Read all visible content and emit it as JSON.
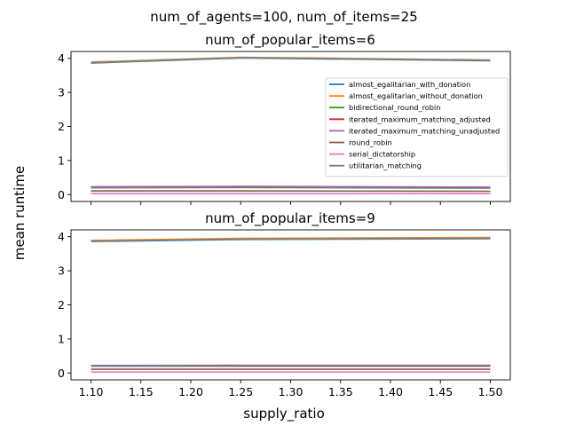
{
  "figure": {
    "suptitle": "num_of_agents=100, num_of_items=25",
    "ylabel": "mean runtime",
    "xlabel": "supply_ratio"
  },
  "chart_data": [
    {
      "type": "line",
      "title": "num_of_popular_items=6",
      "x": [
        1.1,
        1.25,
        1.5
      ],
      "xticks": [
        "1.10",
        "1.15",
        "1.20",
        "1.25",
        "1.30",
        "1.35",
        "1.40",
        "1.45",
        "1.50"
      ],
      "yticks": [
        "0",
        "1",
        "2",
        "3",
        "4"
      ],
      "xlim": [
        1.08,
        1.52
      ],
      "ylim": [
        -0.2,
        4.2
      ],
      "show_x_tick_labels": false,
      "legend_position": "center-right",
      "series": [
        {
          "name": "almost_egalitarian_with_donation",
          "color": "#1f77b4",
          "values": [
            3.86,
            4.01,
            3.93
          ]
        },
        {
          "name": "almost_egalitarian_without_donation",
          "color": "#ff7f0e",
          "values": [
            3.89,
            4.03,
            3.95
          ]
        },
        {
          "name": "bidirectional_round_robin",
          "color": "#2ca02c",
          "values": [
            0.2,
            0.21,
            0.19
          ]
        },
        {
          "name": "iterated_maximum_matching_adjusted",
          "color": "#d62728",
          "values": [
            0.23,
            0.24,
            0.22
          ]
        },
        {
          "name": "iterated_maximum_matching_unadjusted",
          "color": "#9467bd",
          "values": [
            0.22,
            0.23,
            0.21
          ]
        },
        {
          "name": "round_robin",
          "color": "#8c564b",
          "values": [
            0.11,
            0.11,
            0.1
          ]
        },
        {
          "name": "serial_dictatorship",
          "color": "#e377c2",
          "values": [
            0.03,
            0.03,
            0.03
          ]
        },
        {
          "name": "utilitarian_matching",
          "color": "#7f7f7f",
          "values": [
            3.87,
            4.02,
            3.94
          ]
        }
      ]
    },
    {
      "type": "line",
      "title": "num_of_popular_items=9",
      "x": [
        1.1,
        1.25,
        1.5
      ],
      "xticks": [
        "1.10",
        "1.15",
        "1.20",
        "1.25",
        "1.30",
        "1.35",
        "1.40",
        "1.45",
        "1.50"
      ],
      "yticks": [
        "0",
        "1",
        "2",
        "3",
        "4"
      ],
      "xlim": [
        1.08,
        1.52
      ],
      "ylim": [
        -0.2,
        4.2
      ],
      "show_x_tick_labels": true,
      "series": [
        {
          "name": "almost_egalitarian_with_donation",
          "color": "#1f77b4",
          "values": [
            3.86,
            3.92,
            3.94
          ]
        },
        {
          "name": "almost_egalitarian_without_donation",
          "color": "#ff7f0e",
          "values": [
            3.89,
            3.95,
            3.98
          ]
        },
        {
          "name": "bidirectional_round_robin",
          "color": "#2ca02c",
          "values": [
            0.2,
            0.2,
            0.2
          ]
        },
        {
          "name": "iterated_maximum_matching_adjusted",
          "color": "#d62728",
          "values": [
            0.22,
            0.22,
            0.22
          ]
        },
        {
          "name": "iterated_maximum_matching_unadjusted",
          "color": "#9467bd",
          "values": [
            0.22,
            0.23,
            0.23
          ]
        },
        {
          "name": "round_robin",
          "color": "#8c564b",
          "values": [
            0.11,
            0.11,
            0.11
          ]
        },
        {
          "name": "serial_dictatorship",
          "color": "#e377c2",
          "values": [
            0.03,
            0.03,
            0.03
          ]
        },
        {
          "name": "utilitarian_matching",
          "color": "#7f7f7f",
          "values": [
            3.87,
            3.93,
            3.95
          ]
        }
      ]
    }
  ]
}
